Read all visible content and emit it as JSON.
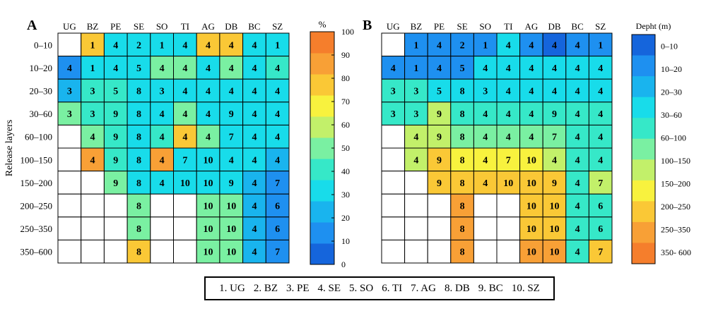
{
  "chart_data": [
    {
      "type": "heatmap",
      "panel_label": "A",
      "ylabel": "Release layers",
      "columns": [
        "UG",
        "BZ",
        "PE",
        "SE",
        "SO",
        "TI",
        "AG",
        "DB",
        "BC",
        "SZ"
      ],
      "rows": [
        "0–10",
        "10–20",
        "20–30",
        "30–60",
        "60–100",
        "100–150",
        "150–200",
        "200–250",
        "250–350",
        "350–600"
      ],
      "colorbar_title": "%",
      "colorbar_ticks": [
        "0",
        "10",
        "20",
        "30",
        "40",
        "50",
        "60",
        "70",
        "80",
        "90",
        "100"
      ],
      "colorbar_range": [
        0,
        100
      ],
      "color_scale": [
        "#1565dc",
        "#1e90f0",
        "#19b4ee",
        "#18dcea",
        "#36e8c8",
        "#7af0a2",
        "#c2f06a",
        "#f8f23e",
        "#fac836",
        "#f8a036",
        "#f57e2c"
      ],
      "cells": [
        [
          [
            null,
            null
          ],
          [
            1,
            80
          ],
          [
            4,
            30
          ],
          [
            2,
            30
          ],
          [
            1,
            30
          ],
          [
            4,
            30
          ],
          [
            4,
            80
          ],
          [
            4,
            80
          ],
          [
            4,
            30
          ],
          [
            1,
            30
          ]
        ],
        [
          [
            4,
            10
          ],
          [
            1,
            30
          ],
          [
            4,
            30
          ],
          [
            5,
            30
          ],
          [
            4,
            50
          ],
          [
            4,
            50
          ],
          [
            4,
            30
          ],
          [
            4,
            50
          ],
          [
            4,
            30
          ],
          [
            4,
            40
          ]
        ],
        [
          [
            3,
            20
          ],
          [
            3,
            40
          ],
          [
            5,
            40
          ],
          [
            8,
            30
          ],
          [
            3,
            30
          ],
          [
            4,
            30
          ],
          [
            4,
            30
          ],
          [
            4,
            30
          ],
          [
            4,
            30
          ],
          [
            4,
            30
          ]
        ],
        [
          [
            3,
            50
          ],
          [
            3,
            40
          ],
          [
            9,
            40
          ],
          [
            8,
            30
          ],
          [
            4,
            30
          ],
          [
            4,
            50
          ],
          [
            4,
            30
          ],
          [
            9,
            30
          ],
          [
            4,
            30
          ],
          [
            4,
            30
          ]
        ],
        [
          [
            null,
            null
          ],
          [
            4,
            50
          ],
          [
            9,
            40
          ],
          [
            8,
            30
          ],
          [
            4,
            40
          ],
          [
            4,
            80
          ],
          [
            4,
            50
          ],
          [
            7,
            30
          ],
          [
            4,
            30
          ],
          [
            4,
            30
          ]
        ],
        [
          [
            null,
            null
          ],
          [
            4,
            90
          ],
          [
            9,
            40
          ],
          [
            8,
            30
          ],
          [
            4,
            90
          ],
          [
            7,
            30
          ],
          [
            10,
            30
          ],
          [
            4,
            30
          ],
          [
            4,
            30
          ],
          [
            4,
            20
          ]
        ],
        [
          [
            null,
            null
          ],
          [
            null,
            null
          ],
          [
            9,
            50
          ],
          [
            8,
            30
          ],
          [
            4,
            30
          ],
          [
            10,
            30
          ],
          [
            10,
            30
          ],
          [
            9,
            30
          ],
          [
            4,
            20
          ],
          [
            7,
            10
          ]
        ],
        [
          [
            null,
            null
          ],
          [
            null,
            null
          ],
          [
            null,
            null
          ],
          [
            8,
            50
          ],
          [
            null,
            null
          ],
          [
            null,
            null
          ],
          [
            10,
            50
          ],
          [
            10,
            50
          ],
          [
            4,
            20
          ],
          [
            6,
            10
          ]
        ],
        [
          [
            null,
            null
          ],
          [
            null,
            null
          ],
          [
            null,
            null
          ],
          [
            8,
            50
          ],
          [
            null,
            null
          ],
          [
            null,
            null
          ],
          [
            10,
            50
          ],
          [
            10,
            50
          ],
          [
            4,
            20
          ],
          [
            6,
            10
          ]
        ],
        [
          [
            null,
            null
          ],
          [
            null,
            null
          ],
          [
            null,
            null
          ],
          [
            8,
            80
          ],
          [
            null,
            null
          ],
          [
            null,
            null
          ],
          [
            10,
            50
          ],
          [
            10,
            50
          ],
          [
            4,
            20
          ],
          [
            7,
            10
          ]
        ]
      ]
    },
    {
      "type": "heatmap",
      "panel_label": "B",
      "columns": [
        "UG",
        "BZ",
        "PE",
        "SE",
        "SO",
        "TI",
        "AG",
        "DB",
        "BC",
        "SZ"
      ],
      "rows": [
        "0–10",
        "10–20",
        "20–30",
        "30–60",
        "60–100",
        "100–150",
        "150–200",
        "200–250",
        "250–350",
        "350–600"
      ],
      "colorbar_title": "Depht (m)",
      "colorbar_labels": [
        "0–10",
        "10–20",
        "20–30",
        "30–60",
        "60–100",
        "100–150",
        "150–200",
        "200–250",
        "250–350",
        "350- 600"
      ],
      "color_scale": [
        "#1565dc",
        "#1e90f0",
        "#19b4ee",
        "#18dcea",
        "#36e8c8",
        "#7af0a2",
        "#c2f06a",
        "#f8f23e",
        "#fac836",
        "#f8a036",
        "#f57e2c"
      ],
      "cells": [
        [
          [
            null,
            null
          ],
          [
            1,
            1
          ],
          [
            4,
            1
          ],
          [
            2,
            1
          ],
          [
            1,
            1
          ],
          [
            4,
            3
          ],
          [
            4,
            1
          ],
          [
            4,
            0
          ],
          [
            4,
            1
          ],
          [
            1,
            1
          ]
        ],
        [
          [
            4,
            1
          ],
          [
            1,
            1
          ],
          [
            4,
            1
          ],
          [
            5,
            1
          ],
          [
            4,
            3
          ],
          [
            4,
            3
          ],
          [
            4,
            3
          ],
          [
            4,
            3
          ],
          [
            4,
            3
          ],
          [
            4,
            3
          ]
        ],
        [
          [
            3,
            4
          ],
          [
            3,
            4
          ],
          [
            5,
            3
          ],
          [
            8,
            3
          ],
          [
            3,
            3
          ],
          [
            4,
            3
          ],
          [
            4,
            3
          ],
          [
            4,
            3
          ],
          [
            4,
            3
          ],
          [
            4,
            3
          ]
        ],
        [
          [
            3,
            4
          ],
          [
            3,
            4
          ],
          [
            9,
            6
          ],
          [
            8,
            4
          ],
          [
            4,
            4
          ],
          [
            4,
            4
          ],
          [
            4,
            4
          ],
          [
            9,
            4
          ],
          [
            4,
            4
          ],
          [
            4,
            4
          ]
        ],
        [
          [
            null,
            null
          ],
          [
            4,
            6
          ],
          [
            9,
            6
          ],
          [
            8,
            5
          ],
          [
            4,
            5
          ],
          [
            4,
            5
          ],
          [
            4,
            5
          ],
          [
            7,
            5
          ],
          [
            4,
            4
          ],
          [
            4,
            4
          ]
        ],
        [
          [
            null,
            null
          ],
          [
            4,
            6
          ],
          [
            9,
            8
          ],
          [
            8,
            7
          ],
          [
            4,
            7
          ],
          [
            7,
            7
          ],
          [
            10,
            7
          ],
          [
            4,
            6
          ],
          [
            4,
            4
          ],
          [
            4,
            4
          ]
        ],
        [
          [
            null,
            null
          ],
          [
            null,
            null
          ],
          [
            9,
            8
          ],
          [
            8,
            8
          ],
          [
            4,
            8
          ],
          [
            10,
            8
          ],
          [
            10,
            8
          ],
          [
            9,
            8
          ],
          [
            4,
            4
          ],
          [
            7,
            6
          ]
        ],
        [
          [
            null,
            null
          ],
          [
            null,
            null
          ],
          [
            null,
            null
          ],
          [
            8,
            9
          ],
          [
            null,
            null
          ],
          [
            null,
            null
          ],
          [
            10,
            8
          ],
          [
            10,
            8
          ],
          [
            4,
            4
          ],
          [
            6,
            4
          ]
        ],
        [
          [
            null,
            null
          ],
          [
            null,
            null
          ],
          [
            null,
            null
          ],
          [
            8,
            9
          ],
          [
            null,
            null
          ],
          [
            null,
            null
          ],
          [
            10,
            8
          ],
          [
            10,
            8
          ],
          [
            4,
            4
          ],
          [
            6,
            4
          ]
        ],
        [
          [
            null,
            null
          ],
          [
            null,
            null
          ],
          [
            null,
            null
          ],
          [
            8,
            9
          ],
          [
            null,
            null
          ],
          [
            null,
            null
          ],
          [
            10,
            9
          ],
          [
            10,
            9
          ],
          [
            4,
            4
          ],
          [
            7,
            8
          ]
        ]
      ]
    }
  ],
  "region_legend": [
    "1. UG",
    "2. BZ",
    "3. PE",
    "4. SE",
    "5. SO",
    "6. TI",
    "7. AG",
    "8. DB",
    "9. BC",
    "10. SZ"
  ]
}
